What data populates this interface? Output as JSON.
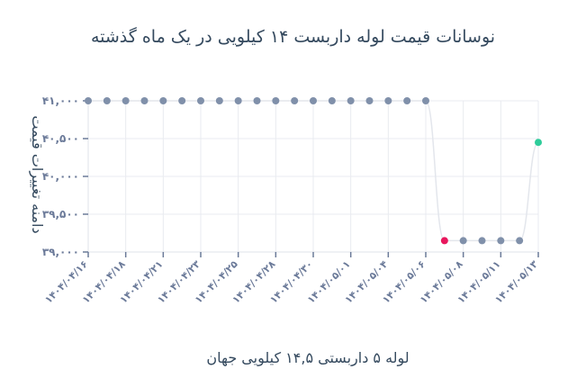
{
  "chart_data": {
    "type": "line",
    "title": "نوسانات قیمت لوله داربست ۱۴ کیلویی در یک ماه گذشته",
    "xlabel": "لوله ۵ داربستی ۱۴,۵ کیلویی جهان",
    "ylabel": "دامنه تغییرات قیمت",
    "ylim": [
      39000,
      41000
    ],
    "y_ticks": [
      39000,
      39500,
      40000,
      40500,
      41000
    ],
    "y_tick_labels": [
      "۳۹,۰۰۰",
      "۳۹,۵۰۰",
      "۴۰,۰۰۰",
      "۴۰,۵۰۰",
      "۴۱,۰۰۰"
    ],
    "x_ticks": [
      {
        "index": 0,
        "label": "۱۴۰۴/۰۴/۱۶"
      },
      {
        "index": 2,
        "label": "۱۴۰۴/۰۴/۱۸"
      },
      {
        "index": 4,
        "label": "۱۴۰۴/۰۴/۲۱"
      },
      {
        "index": 6,
        "label": "۱۴۰۴/۰۴/۲۳"
      },
      {
        "index": 8,
        "label": "۱۴۰۴/۰۴/۲۵"
      },
      {
        "index": 10,
        "label": "۱۴۰۴/۰۴/۲۸"
      },
      {
        "index": 12,
        "label": "۱۴۰۴/۰۴/۳۰"
      },
      {
        "index": 14,
        "label": "۱۴۰۴/۰۵/۰۱"
      },
      {
        "index": 16,
        "label": "۱۴۰۴/۰۵/۰۴"
      },
      {
        "index": 18,
        "label": "۱۴۰۴/۰۵/۰۶"
      },
      {
        "index": 20,
        "label": "۱۴۰۴/۰۵/۰۸"
      },
      {
        "index": 22,
        "label": "۱۴۰۴/۰۵/۱۱"
      },
      {
        "index": 24,
        "label": "۱۴۰۴/۰۵/۱۳"
      }
    ],
    "series": [
      {
        "values": [
          41000,
          41000,
          41000,
          41000,
          41000,
          41000,
          41000,
          41000,
          41000,
          41000,
          41000,
          41000,
          41000,
          41000,
          41000,
          41000,
          41000,
          41000,
          41000,
          39150,
          39150,
          39150,
          39150,
          39150,
          40450
        ],
        "point_color": "#8090aa",
        "min_point_color": "#e8175d",
        "max_point_color": "#2ecc9a",
        "line_color": "#e3e6ec"
      }
    ],
    "grid": true
  }
}
